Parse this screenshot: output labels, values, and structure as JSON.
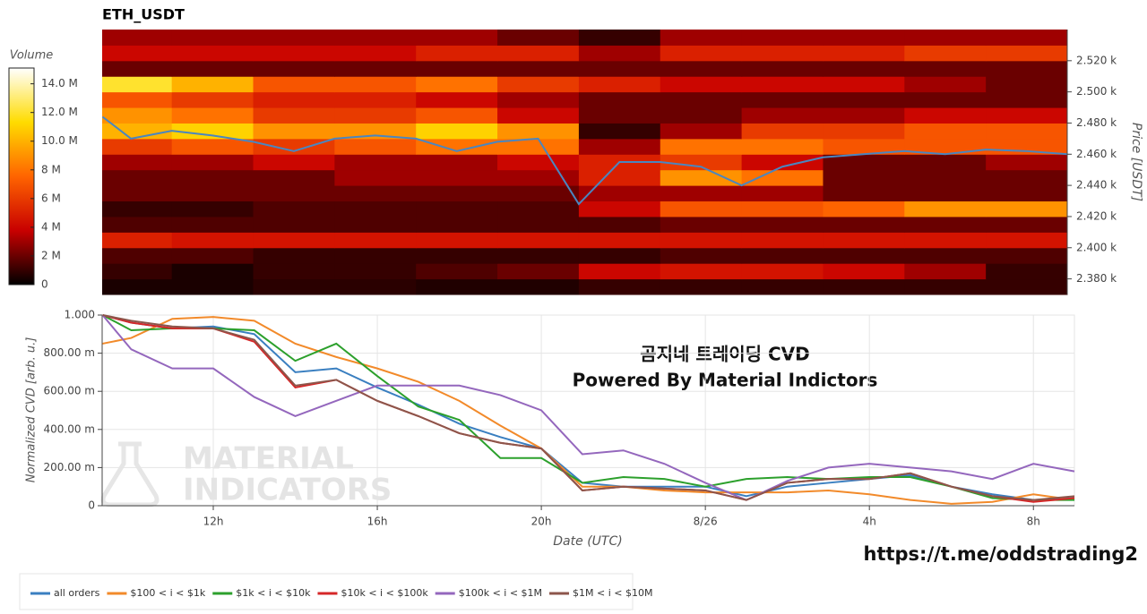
{
  "chart_data": [
    {
      "type": "heatmap",
      "title": "ETH_USDT",
      "y_label": "Price [USDT]",
      "colorbar_title": "Volume",
      "colormap": [
        "#000000",
        "#c80000",
        "#ff6400",
        "#ffdc00",
        "#ffffff"
      ],
      "xlim": [
        9.29,
        33.0
      ],
      "ylim": [
        2370,
        2540
      ],
      "yticks": [
        {
          "value": 2380,
          "label": "2.380 k"
        },
        {
          "value": 2400,
          "label": "2.400 k"
        },
        {
          "value": 2420,
          "label": "2.420 k"
        },
        {
          "value": 2440,
          "label": "2.440 k"
        },
        {
          "value": 2460,
          "label": "2.460 k"
        },
        {
          "value": 2480,
          "label": "2.480 k"
        },
        {
          "value": 2500,
          "label": "2.500 k"
        },
        {
          "value": 2520,
          "label": "2.520 k"
        }
      ],
      "clim": [
        0,
        15.1
      ],
      "cticks": [
        {
          "value": 0,
          "label": "0"
        },
        {
          "value": 2,
          "label": "2 M"
        },
        {
          "value": 4,
          "label": "4 M"
        },
        {
          "value": 6,
          "label": "6 M"
        },
        {
          "value": 8,
          "label": "8 M"
        },
        {
          "value": 10,
          "label": "10.0 M"
        },
        {
          "value": 12,
          "label": "12.0 M"
        },
        {
          "value": 14,
          "label": "14.0 M"
        }
      ],
      "x_edges": [
        9.29,
        11,
        13,
        15,
        17,
        19,
        21,
        23,
        25,
        27,
        29,
        31,
        33
      ],
      "y_edges": [
        2370,
        2380,
        2390,
        2400,
        2410,
        2420,
        2430,
        2440,
        2450,
        2460,
        2470,
        2480,
        2490,
        2500,
        2510,
        2520,
        2530,
        2540
      ],
      "z": [
        [
          0.5,
          0.5,
          0.8,
          0.8,
          0.6,
          0.6,
          1,
          1,
          1,
          1,
          1,
          1
        ],
        [
          1,
          0.5,
          1,
          1,
          1.5,
          2,
          4,
          4.5,
          4.5,
          4,
          3,
          1
        ],
        [
          1.5,
          1.5,
          1,
          1,
          1,
          1,
          1,
          1.5,
          1.5,
          1.5,
          1.5,
          1.5
        ],
        [
          5,
          4.5,
          4.5,
          4.5,
          4.5,
          4.5,
          4.5,
          4.5,
          4.5,
          4.5,
          4.5,
          4.5
        ],
        [
          1.5,
          1.5,
          1.5,
          1.5,
          1.5,
          1.5,
          1.5,
          2,
          2,
          2,
          2,
          2
        ],
        [
          1,
          1,
          1.5,
          1.5,
          1.5,
          1.5,
          4,
          7,
          7,
          7.5,
          9,
          9
        ],
        [
          2,
          2,
          2,
          2,
          2,
          2,
          3,
          3,
          3,
          2,
          2,
          2
        ],
        [
          2,
          2,
          2,
          3,
          3,
          3,
          5,
          9,
          8,
          2,
          2,
          2
        ],
        [
          3,
          3,
          4,
          3,
          3,
          4,
          5,
          6,
          4,
          2,
          2,
          3
        ],
        [
          6,
          7,
          6,
          7,
          8,
          8,
          3,
          8,
          8,
          7,
          7,
          7
        ],
        [
          10,
          11,
          9,
          9,
          11,
          9,
          1,
          3,
          6,
          6,
          7,
          7
        ],
        [
          9,
          8,
          6,
          6,
          7,
          4,
          2,
          2,
          3,
          3,
          4,
          4
        ],
        [
          7,
          6,
          5,
          5,
          4,
          3,
          2,
          2,
          2,
          2,
          2,
          2
        ],
        [
          12,
          10,
          7,
          7,
          8,
          6,
          5,
          4,
          4,
          4,
          3,
          2
        ],
        [
          2,
          2,
          2,
          2,
          2,
          2,
          2,
          2,
          2,
          2,
          2,
          2
        ],
        [
          4,
          4,
          4,
          4,
          5,
          5,
          3,
          5,
          5,
          5,
          6,
          6
        ],
        [
          3,
          3,
          3,
          3,
          3,
          2,
          1,
          3,
          3,
          3,
          3,
          3
        ]
      ],
      "price": {
        "color": "#4a86c0",
        "x": [
          9.3,
          10,
          11,
          12,
          13,
          14,
          15,
          16,
          17,
          18,
          19,
          20,
          21,
          22,
          23,
          24,
          25,
          26,
          27,
          28,
          29,
          30,
          31,
          32,
          33
        ],
        "values": [
          2484,
          2470,
          2475,
          2472,
          2468,
          2462,
          2470,
          2472,
          2470,
          2462,
          2468,
          2470,
          2428,
          2455,
          2455,
          2452,
          2440,
          2452,
          2458,
          2460,
          2462,
          2460,
          2463,
          2462,
          2460
        ]
      }
    },
    {
      "type": "line",
      "x_label": "Date (UTC)",
      "y_label": "Normalized CVD [arb. u.]",
      "xlim": [
        9.29,
        33.0
      ],
      "ylim": [
        0,
        1.0
      ],
      "xticks": [
        {
          "value": 12,
          "label": "12h"
        },
        {
          "value": 16,
          "label": "16h"
        },
        {
          "value": 20,
          "label": "20h"
        },
        {
          "value": 24,
          "label": "8/26"
        },
        {
          "value": 28,
          "label": "4h"
        },
        {
          "value": 32,
          "label": "8h"
        }
      ],
      "yticks": [
        {
          "value": 0,
          "label": "0"
        },
        {
          "value": 0.2,
          "label": "200.00 m"
        },
        {
          "value": 0.4,
          "label": "400.00 m"
        },
        {
          "value": 0.6,
          "label": "600.00 m"
        },
        {
          "value": 0.8,
          "label": "800.00 m"
        },
        {
          "value": 1.0,
          "label": "1.000"
        }
      ],
      "grid": true,
      "annotations": [
        "곰지네 트레이딩 CVD",
        "Powered By Material Indictors"
      ],
      "watermark": [
        "MATERIAL",
        "INDICATORS"
      ],
      "link": "https://t.me/oddstrading2",
      "x": [
        9.3,
        10,
        11,
        12,
        13,
        14,
        15,
        16,
        17,
        18,
        19,
        20,
        21,
        22,
        23,
        24,
        25,
        26,
        27,
        28,
        29,
        30,
        31,
        32,
        33
      ],
      "series": [
        {
          "name": "all orders",
          "color": "#3a7fc0",
          "values": [
            1.0,
            0.96,
            0.93,
            0.94,
            0.9,
            0.7,
            0.72,
            0.62,
            0.53,
            0.43,
            0.36,
            0.3,
            0.12,
            0.1,
            0.1,
            0.1,
            0.05,
            0.1,
            0.12,
            0.14,
            0.16,
            0.1,
            0.06,
            0.03,
            0.04
          ]
        },
        {
          "name": "$100 < i < $1k",
          "color": "#f28a2a",
          "values": [
            0.85,
            0.88,
            0.98,
            0.99,
            0.97,
            0.85,
            0.78,
            0.72,
            0.65,
            0.55,
            0.42,
            0.3,
            0.1,
            0.1,
            0.08,
            0.07,
            0.07,
            0.07,
            0.08,
            0.06,
            0.03,
            0.01,
            0.02,
            0.06,
            0.03
          ]
        },
        {
          "name": "$1k < i < $10k",
          "color": "#2ca02c",
          "values": [
            1.0,
            0.92,
            0.93,
            0.93,
            0.92,
            0.76,
            0.85,
            0.68,
            0.52,
            0.45,
            0.25,
            0.25,
            0.12,
            0.15,
            0.14,
            0.1,
            0.14,
            0.15,
            0.14,
            0.15,
            0.15,
            0.1,
            0.04,
            0.03,
            0.03
          ]
        },
        {
          "name": "$10k < i < $100k",
          "color": "#d62728",
          "values": [
            1.0,
            0.96,
            0.93,
            0.93,
            0.86,
            0.62,
            0.66,
            0.55,
            0.47,
            0.38,
            0.33,
            0.3,
            0.08,
            0.1,
            0.09,
            0.08,
            0.03,
            0.12,
            0.14,
            0.14,
            0.17,
            0.1,
            0.05,
            0.02,
            0.04
          ]
        },
        {
          "name": "$100k < i < $1M",
          "color": "#9467bd",
          "values": [
            1.0,
            0.82,
            0.72,
            0.72,
            0.57,
            0.47,
            0.55,
            0.63,
            0.63,
            0.63,
            0.58,
            0.5,
            0.27,
            0.29,
            0.22,
            0.12,
            0.03,
            0.13,
            0.2,
            0.22,
            0.2,
            0.18,
            0.14,
            0.22,
            0.18
          ]
        },
        {
          "name": "$1M < i < $10M",
          "color": "#8c564b",
          "values": [
            1.0,
            0.97,
            0.94,
            0.93,
            0.87,
            0.63,
            0.66,
            0.55,
            0.47,
            0.38,
            0.33,
            0.3,
            0.08,
            0.1,
            0.09,
            0.08,
            0.03,
            0.12,
            0.14,
            0.14,
            0.17,
            0.1,
            0.05,
            0.03,
            0.05
          ]
        }
      ]
    }
  ]
}
